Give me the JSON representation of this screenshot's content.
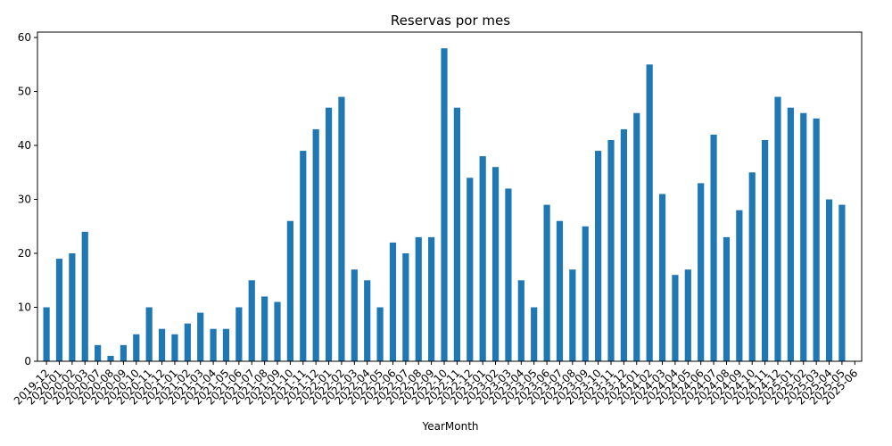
{
  "chart_data": {
    "type": "bar",
    "title": "Reservas por mes",
    "xlabel": "YearMonth",
    "ylabel": "",
    "ylim": [
      0,
      61
    ],
    "yticks": [
      0,
      10,
      20,
      30,
      40,
      50,
      60
    ],
    "grid": false,
    "bar_color": "#1f77b4",
    "categories": [
      "2019-12",
      "2020-01",
      "2020-02",
      "2020-03",
      "2020-07",
      "2020-08",
      "2020-09",
      "2020-10",
      "2020-11",
      "2020-12",
      "2021-01",
      "2021-02",
      "2021-03",
      "2021-04",
      "2021-05",
      "2021-06",
      "2021-07",
      "2021-08",
      "2021-09",
      "2021-10",
      "2021-11",
      "2021-12",
      "2022-01",
      "2022-02",
      "2022-03",
      "2022-04",
      "2022-05",
      "2022-06",
      "2022-07",
      "2022-08",
      "2022-09",
      "2022-10",
      "2022-11",
      "2022-12",
      "2023-01",
      "2023-02",
      "2023-03",
      "2023-04",
      "2023-05",
      "2023-06",
      "2023-07",
      "2023-08",
      "2023-09",
      "2023-10",
      "2023-11",
      "2023-12",
      "2024-01",
      "2024-02",
      "2024-03",
      "2024-04",
      "2024-05",
      "2024-06",
      "2024-07",
      "2024-08",
      "2024-09",
      "2024-10",
      "2024-11",
      "2024-12",
      "2025-01",
      "2025-02",
      "2025-03",
      "2025-04",
      "2025-05",
      "2025-06"
    ],
    "values": [
      10,
      19,
      20,
      24,
      3,
      1,
      3,
      5,
      10,
      6,
      5,
      7,
      9,
      6,
      6,
      10,
      15,
      12,
      11,
      26,
      39,
      43,
      47,
      49,
      17,
      15,
      10,
      22,
      20,
      23,
      23,
      58,
      47,
      34,
      38,
      36,
      32,
      15,
      10,
      29,
      26,
      17,
      25,
      39,
      41,
      43,
      46,
      55,
      31,
      16,
      17,
      33,
      42,
      23,
      28,
      35,
      41,
      49,
      47,
      46,
      45,
      30,
      29,
      0
    ]
  }
}
